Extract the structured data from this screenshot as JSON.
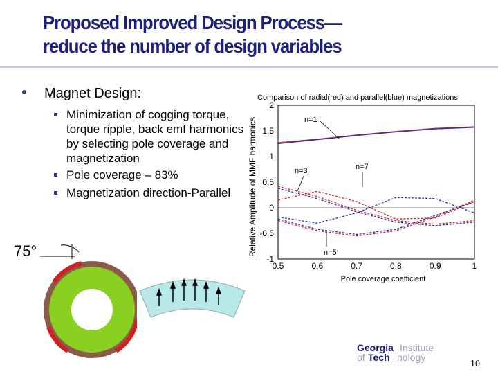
{
  "slide": {
    "title_line1": "Proposed Improved Design Process—",
    "title_line2": "reduce the number of design variables",
    "bullet_main": "Magnet Design:",
    "sub_bullets": [
      "Minimization of cogging torque, torque ripple, back emf harmonics by selecting pole coverage and magnetization",
      "Pole coverage – 83%",
      "Magnetization direction-Parallel"
    ],
    "angle_label": "75°",
    "page_number": "10"
  },
  "logo": {
    "word1": "Georgia",
    "word2": "Institute",
    "word3": "of",
    "word4": "Tech",
    "word5": "nology"
  },
  "colors": {
    "title": "#1d1f7c",
    "radial": "#d22020",
    "parallel": "#2233aa",
    "ring_green": "#8ad020",
    "arc_fill": "#b8e8e8"
  },
  "chart_data": {
    "type": "line",
    "title": "Comparison of radial(red) and parallel(blue) magnetizations",
    "xlabel": "Pole coverage coefficient",
    "ylabel": "Relative Amplitude of MMF harmonics",
    "xlim": [
      0.5,
      1
    ],
    "ylim": [
      -1,
      2
    ],
    "xticks": [
      "0.5",
      "0.6",
      "0.7",
      "0.8",
      "0.9",
      "1"
    ],
    "yticks": [
      "-1",
      "-0.5",
      "0",
      "0.5",
      "1",
      "1.5",
      "2"
    ],
    "annotations": [
      "n=1",
      "n=3",
      "n=7",
      "n=5"
    ],
    "x": [
      0.5,
      0.6,
      0.7,
      0.8,
      0.9,
      1.0
    ],
    "series": [
      {
        "name": "n=1 radial",
        "color": "#d22020",
        "values": [
          1.27,
          1.34,
          1.42,
          1.49,
          1.55,
          1.58
        ]
      },
      {
        "name": "n=1 parallel",
        "color": "#2233aa",
        "values": [
          1.25,
          1.33,
          1.41,
          1.48,
          1.54,
          1.57
        ]
      },
      {
        "name": "n=3 radial",
        "color": "#d22020",
        "values": [
          0.42,
          0.22,
          -0.05,
          -0.25,
          -0.32,
          -0.25
        ]
      },
      {
        "name": "n=3 parallel",
        "color": "#2233aa",
        "values": [
          0.38,
          0.18,
          -0.08,
          -0.28,
          -0.35,
          -0.28
        ]
      },
      {
        "name": "n=5 radial",
        "color": "#d22020",
        "values": [
          -0.25,
          -0.45,
          -0.55,
          -0.45,
          -0.18,
          0.15
        ]
      },
      {
        "name": "n=5 parallel",
        "color": "#2233aa",
        "values": [
          -0.22,
          -0.42,
          -0.52,
          -0.42,
          -0.15,
          0.12
        ]
      },
      {
        "name": "n=7 radial",
        "color": "#d22020",
        "values": [
          0.15,
          0.32,
          0.12,
          -0.22,
          -0.2,
          0.12
        ]
      },
      {
        "name": "n=7 parallel",
        "color": "#2233aa",
        "values": [
          -0.18,
          -0.3,
          -0.1,
          0.2,
          0.18,
          -0.1
        ]
      }
    ]
  }
}
